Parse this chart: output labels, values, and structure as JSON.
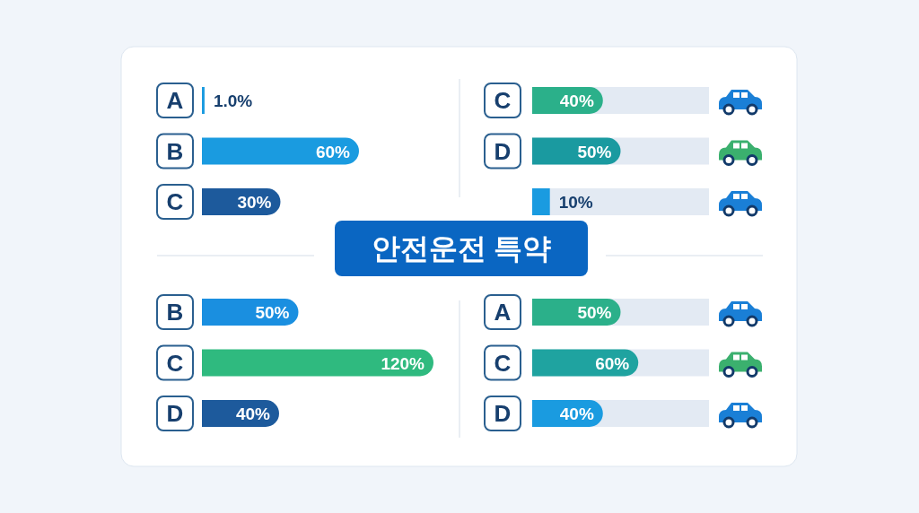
{
  "chart_data": [
    {
      "type": "bar",
      "orientation": "horizontal",
      "categories": [
        "A",
        "B",
        "C"
      ],
      "values": [
        1.0,
        60,
        30
      ],
      "value_labels": [
        "1.0%",
        "60%",
        "30%"
      ],
      "colors": [
        "#1a9be0",
        "#1a9be0",
        "#1d5a9c"
      ]
    },
    {
      "type": "bar",
      "orientation": "horizontal",
      "categories": [
        "C",
        "D",
        null
      ],
      "values": [
        40,
        50,
        10
      ],
      "value_labels": [
        "40%",
        "50%",
        "10%"
      ],
      "colors": [
        "#2bb08a",
        "#1a9aa0",
        "#1a9be0"
      ],
      "bands": [
        {
          "axis": "x",
          "from": 0,
          "to": 100,
          "color": "#e3eaf3"
        }
      ]
    },
    {
      "type": "other",
      "title": "안전운전 특약"
    },
    {
      "type": "bar",
      "orientation": "horizontal",
      "categories": [
        "B",
        "C",
        "D"
      ],
      "values": [
        50,
        120,
        40
      ],
      "value_labels": [
        "50%",
        "120%",
        "40%"
      ],
      "colors": [
        "#1a8fe0",
        "#2fba7f",
        "#1d5a9c"
      ]
    },
    {
      "type": "bar",
      "orientation": "horizontal",
      "categories": [
        "A",
        "C",
        "D"
      ],
      "values": [
        50,
        60,
        40
      ],
      "value_labels": [
        "50%",
        "60%",
        "40%"
      ],
      "colors": [
        "#2bb08a",
        "#1fa3a0",
        "#1a9be0"
      ],
      "bands": [
        {
          "axis": "x",
          "from": 0,
          "to": 100,
          "color": "#e3eaf3"
        }
      ]
    }
  ]
}
